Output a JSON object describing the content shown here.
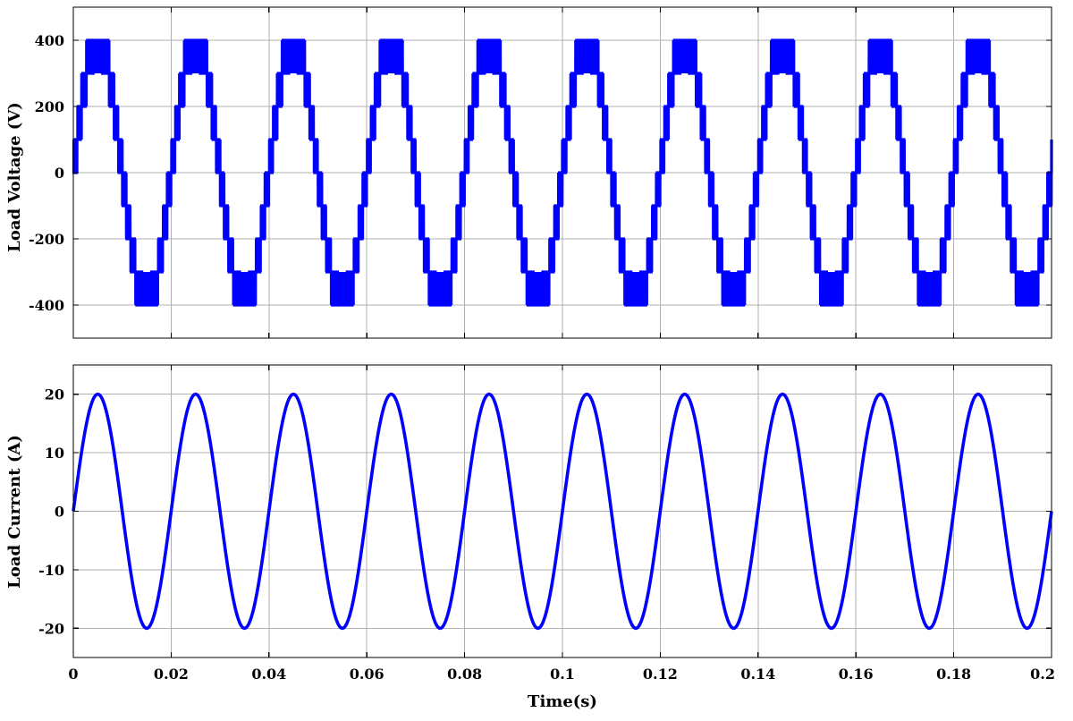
{
  "chart_data": [
    {
      "type": "line",
      "title": "",
      "xlabel": "",
      "ylabel": "Load Voltage (V)",
      "xlim": [
        0,
        0.2
      ],
      "ylim": [
        -500,
        500
      ],
      "yticks": [
        -400,
        -200,
        0,
        200,
        400
      ],
      "ytick_labels": [
        "-400",
        "-200",
        "0",
        "200",
        "400"
      ],
      "xticks": [
        0,
        0.02,
        0.04,
        0.06,
        0.08,
        0.1,
        0.12,
        0.14,
        0.16,
        0.18,
        0.2
      ],
      "show_xtick_labels": false,
      "grid": true,
      "color": "#0000ff",
      "series": [
        {
          "waveform": "9-level staircase (multilevel inverter output) with PWM switching between adjacent levels",
          "frequency_hz": 50,
          "peak": 400,
          "levels": [
            -400,
            -300,
            -200,
            -100,
            0,
            100,
            200,
            300,
            400
          ],
          "phase_start": 0,
          "x_range": [
            0,
            0.2
          ]
        }
      ]
    },
    {
      "type": "line",
      "title": "",
      "xlabel": "Time(s)",
      "ylabel": "Load Current (A)",
      "xlim": [
        0,
        0.2
      ],
      "ylim": [
        -25,
        25
      ],
      "yticks": [
        -20,
        -10,
        0,
        10,
        20
      ],
      "ytick_labels": [
        "-20",
        "-10",
        "0",
        "10",
        "20"
      ],
      "xticks": [
        0,
        0.02,
        0.04,
        0.06,
        0.08,
        0.1,
        0.12,
        0.14,
        0.16,
        0.18,
        0.2
      ],
      "xtick_labels": [
        "0",
        "0.02",
        "0.04",
        "0.06",
        "0.08",
        "0.1",
        "0.12",
        "0.14",
        "0.16",
        "0.18",
        "0.2"
      ],
      "show_xtick_labels": true,
      "grid": true,
      "color": "#0000ff",
      "series": [
        {
          "waveform": "sine",
          "frequency_hz": 50,
          "amplitude": 20,
          "phase_start": 0,
          "x_range": [
            0,
            0.2
          ]
        }
      ]
    }
  ]
}
